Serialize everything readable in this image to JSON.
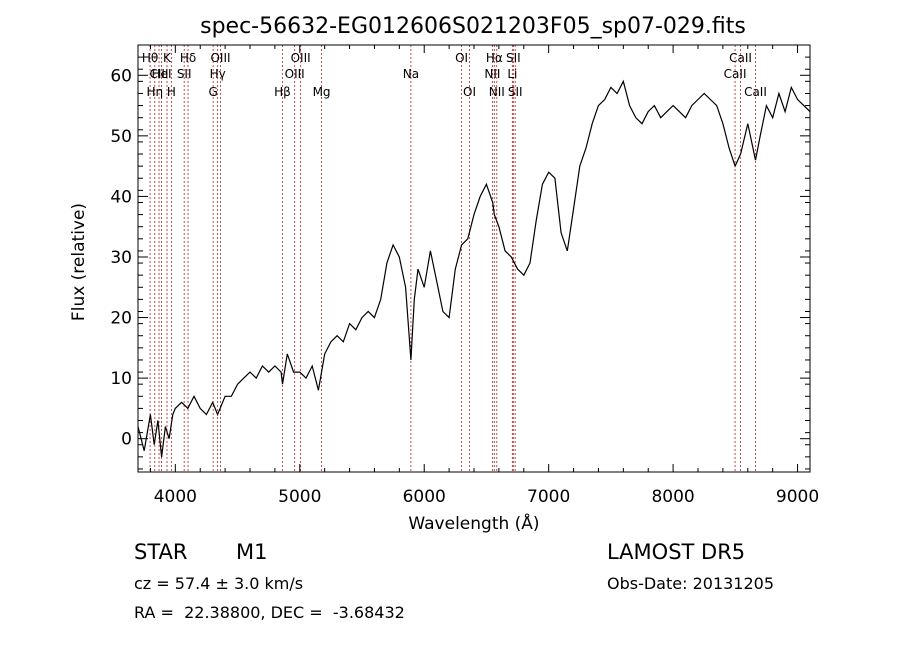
{
  "chart_data": {
    "type": "line",
    "title": "spec-56632-EG012606S021203F05_sp07-029.fits",
    "xlabel": "Wavelength (Å)",
    "ylabel": "Flux (relative)",
    "xlim": [
      3700,
      9100
    ],
    "ylim": [
      -5.5,
      65
    ],
    "xticks": [
      4000,
      5000,
      6000,
      7000,
      8000,
      9000
    ],
    "yticks": [
      0,
      10,
      20,
      30,
      40,
      50,
      60
    ],
    "grid": false,
    "line_color": "#000000",
    "marker_color": "#b22222",
    "series": [
      {
        "x": [
          3700,
          3750,
          3800,
          3830,
          3860,
          3890,
          3920,
          3950,
          3980,
          4000,
          4050,
          4100,
          4150,
          4200,
          4250,
          4300,
          4340,
          4400,
          4450,
          4500,
          4550,
          4600,
          4650,
          4700,
          4750,
          4800,
          4850,
          4861,
          4900,
          4950,
          5000,
          5050,
          5100,
          5150,
          5200,
          5250,
          5300,
          5350,
          5400,
          5450,
          5500,
          5550,
          5600,
          5650,
          5700,
          5750,
          5800,
          5850,
          5893,
          5920,
          5950,
          6000,
          6050,
          6100,
          6150,
          6200,
          6250,
          6300,
          6350,
          6400,
          6450,
          6500,
          6550,
          6563,
          6600,
          6650,
          6700,
          6750,
          6800,
          6850,
          6900,
          6950,
          7000,
          7050,
          7100,
          7150,
          7200,
          7250,
          7300,
          7350,
          7400,
          7450,
          7500,
          7550,
          7600,
          7650,
          7700,
          7750,
          7800,
          7850,
          7900,
          7950,
          8000,
          8050,
          8100,
          8150,
          8200,
          8250,
          8300,
          8350,
          8400,
          8450,
          8498,
          8542,
          8600,
          8662,
          8700,
          8750,
          8800,
          8850,
          8900,
          8950,
          9000,
          9050,
          9100
        ],
        "y": [
          2,
          -2,
          4,
          -1,
          3,
          -3,
          2,
          0,
          4,
          5,
          6,
          5,
          7,
          5,
          4,
          6,
          4,
          7,
          7,
          9,
          10,
          11,
          10,
          12,
          11,
          12,
          11,
          9,
          14,
          11,
          11,
          10,
          12,
          8,
          14,
          16,
          17,
          16,
          19,
          18,
          20,
          21,
          20,
          23,
          29,
          32,
          30,
          25,
          13,
          23,
          28,
          25,
          31,
          26,
          21,
          20,
          28,
          32,
          33,
          37,
          40,
          42,
          39,
          37,
          35,
          31,
          30,
          28,
          27,
          29,
          36,
          42,
          44,
          43,
          34,
          31,
          38,
          45,
          48,
          52,
          55,
          56,
          58,
          57,
          59,
          55,
          53,
          52,
          54,
          55,
          53,
          54,
          55,
          54,
          53,
          55,
          56,
          57,
          56,
          55,
          52,
          48,
          45,
          47,
          52,
          46,
          50,
          55,
          53,
          57,
          54,
          58,
          56,
          55,
          54
        ]
      }
    ],
    "lines": [
      {
        "x": 3797,
        "label": "Hθ",
        "row": 1
      },
      {
        "x": 3835,
        "label": "Hη",
        "row": 3
      },
      {
        "x": 3869,
        "label": "CIII",
        "row": 2
      },
      {
        "x": 3889,
        "label": "HeI",
        "row": 2
      },
      {
        "x": 3933,
        "label": "K",
        "row": 1
      },
      {
        "x": 3968,
        "label": "H",
        "row": 3
      },
      {
        "x": 4071,
        "label": "SII",
        "row": 2
      },
      {
        "x": 4102,
        "label": "Hδ",
        "row": 1
      },
      {
        "x": 4304,
        "label": "G",
        "row": 3
      },
      {
        "x": 4340,
        "label": "Hγ",
        "row": 2
      },
      {
        "x": 4363,
        "label": "OIII",
        "row": 1
      },
      {
        "x": 4861,
        "label": "Hβ",
        "row": 3
      },
      {
        "x": 4959,
        "label": "OIII",
        "row": 2
      },
      {
        "x": 5007,
        "label": "OIII",
        "row": 1
      },
      {
        "x": 5175,
        "label": "Mg",
        "row": 3
      },
      {
        "x": 5893,
        "label": "Na",
        "row": 2
      },
      {
        "x": 6300,
        "label": "OI",
        "row": 1
      },
      {
        "x": 6364,
        "label": "OI",
        "row": 3
      },
      {
        "x": 6548,
        "label": "NII",
        "row": 2
      },
      {
        "x": 6563,
        "label": "Hα",
        "row": 1
      },
      {
        "x": 6583,
        "label": "NII",
        "row": 3
      },
      {
        "x": 6708,
        "label": "Li",
        "row": 2
      },
      {
        "x": 6716,
        "label": "SII",
        "row": 1
      },
      {
        "x": 6731,
        "label": "SII",
        "row": 3
      },
      {
        "x": 8498,
        "label": "CaII",
        "row": 2
      },
      {
        "x": 8542,
        "label": "CaII",
        "row": 1
      },
      {
        "x": 8662,
        "label": "CaII",
        "row": 3
      }
    ]
  },
  "info": {
    "object_type": "STAR",
    "subclass": "M1",
    "survey": "LAMOST DR5",
    "cz": "cz = 57.4 ± 3.0 km/s",
    "obs_date": "Obs-Date: 20131205",
    "coords": "RA =  22.38800, DEC =  -3.68432"
  }
}
